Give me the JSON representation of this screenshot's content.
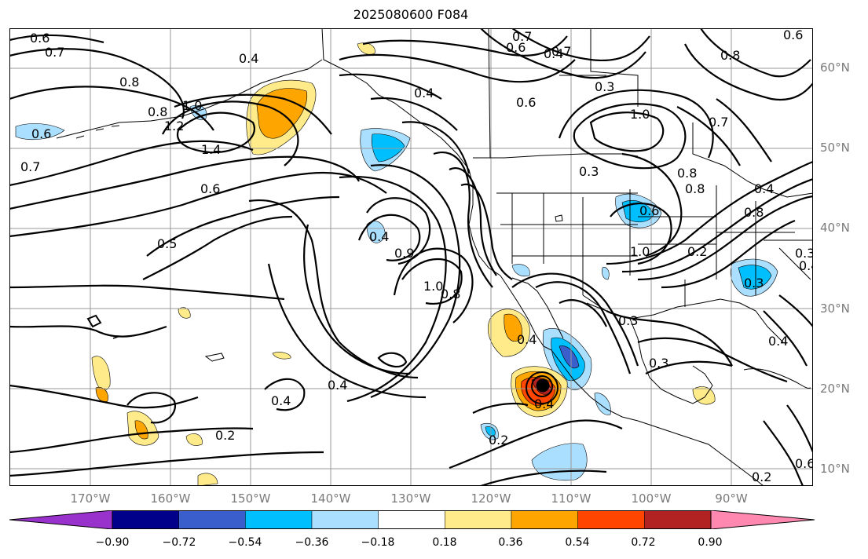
{
  "title": "2025080600 F084",
  "latitude_labels": [
    "60°N",
    "50°N",
    "40°N",
    "30°N",
    "20°N",
    "10°N"
  ],
  "longitude_labels": [
    "170°W",
    "160°W",
    "150°W",
    "140°W",
    "130°W",
    "120°W",
    "110°W",
    "100°W",
    "90°W"
  ],
  "colorbar": {
    "ticks": [
      "−0.90",
      "−0.72",
      "−0.54",
      "−0.36",
      "−0.18",
      "0.18",
      "0.36",
      "0.54",
      "0.72",
      "0.90"
    ],
    "colors": [
      "#9932cc",
      "#00008b",
      "#3a5fcd",
      "#00bfff",
      "#aadfff",
      "#ffffff",
      "#ffeb8a",
      "#ffa500",
      "#ff4500",
      "#b22222",
      "#ff88b0"
    ]
  },
  "contour_labels": [
    "0.6",
    "0.7",
    "0.8",
    "0.7",
    "0.6",
    "0.4",
    "0.8",
    "0.8",
    "1.0",
    "1.2",
    "1.4",
    "0.6",
    "0.7",
    "0.5",
    "0.6",
    "0.4",
    "0.4",
    "1.0",
    "0.8",
    "0.4",
    "0.4",
    "0.2",
    "0.4",
    "0.9",
    "0.7",
    "0.4",
    "0.3",
    "0.6",
    "1.0",
    "0.7",
    "0.3",
    "0.8",
    "0.8",
    "0.6",
    "1.0",
    "0.2",
    "0.3",
    "0.3",
    "0.3",
    "0.4",
    "0.4",
    "0.2",
    "0.2",
    "0.6",
    "0.4",
    "0.4",
    "0.3",
    "0.8",
    "0.6"
  ],
  "colors": {
    "contour": "#000000",
    "grid": "#999999",
    "coast": "#000000",
    "axis_label": "#7a7a7a"
  }
}
